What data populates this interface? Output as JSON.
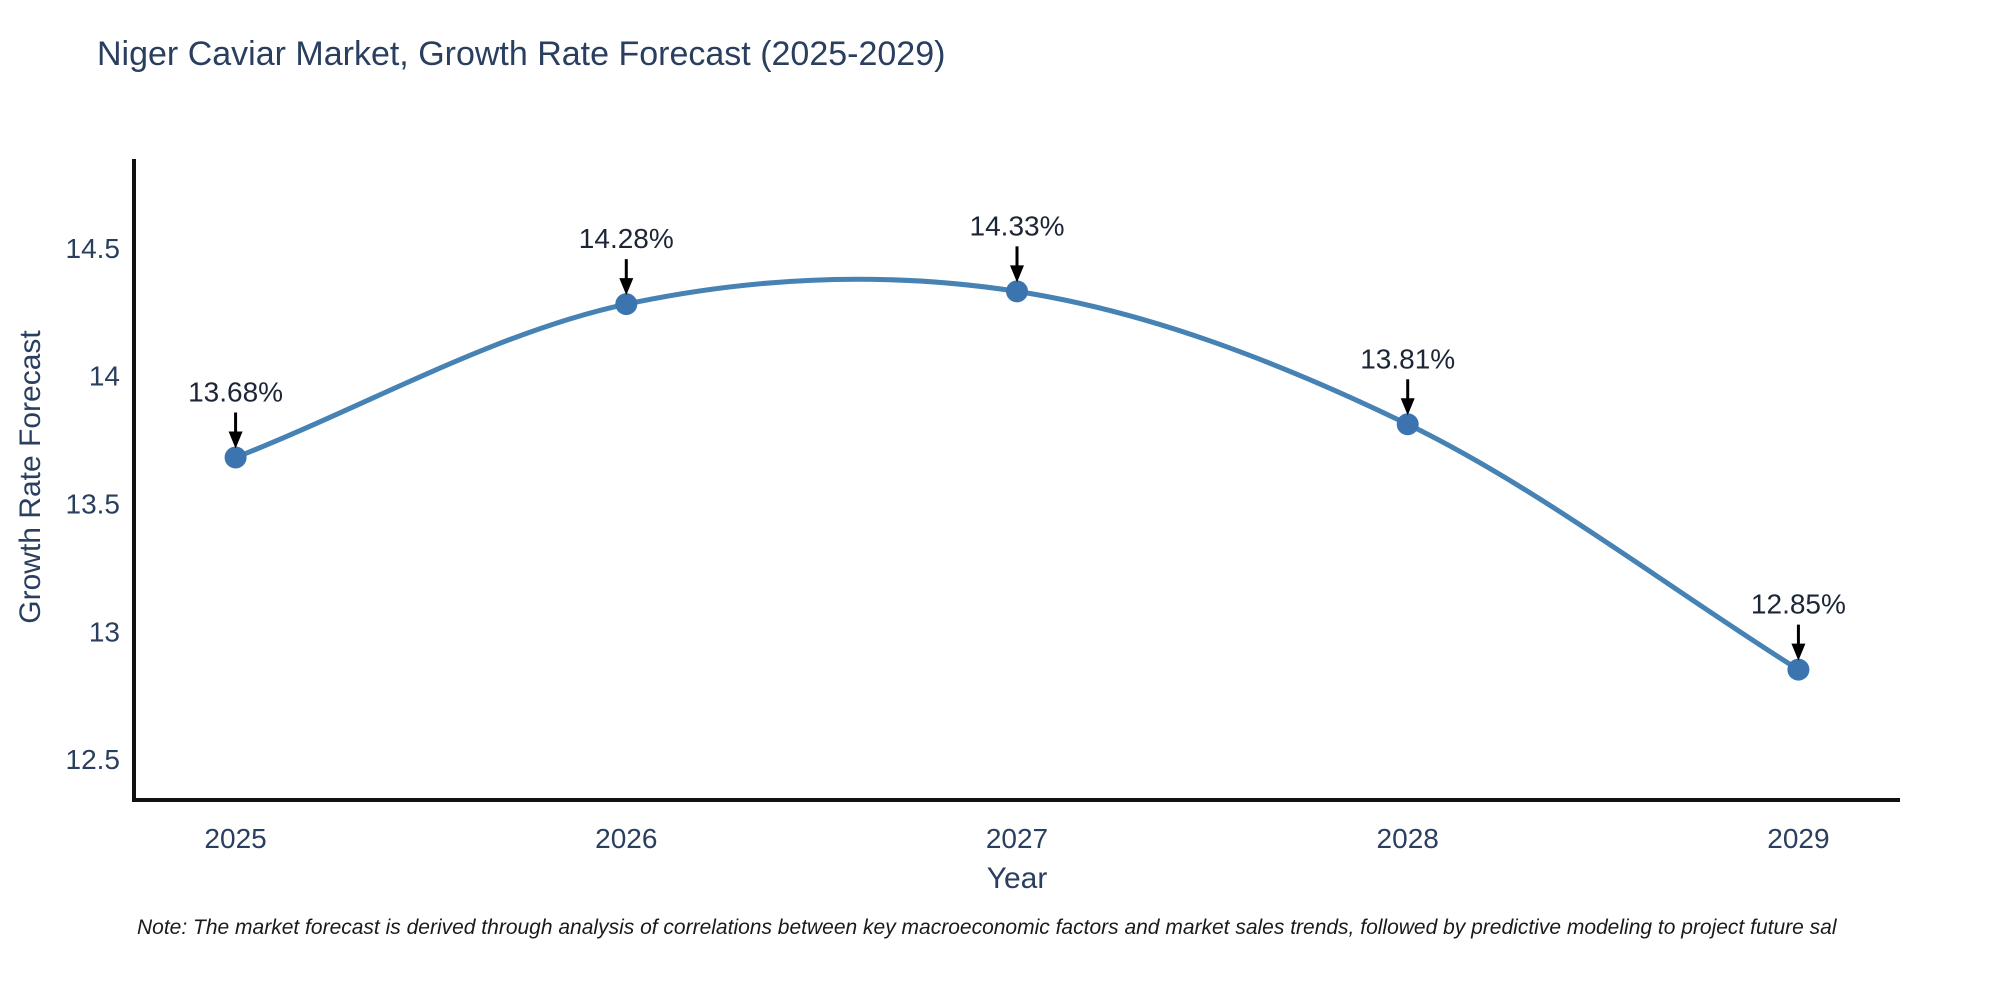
{
  "note": "Note: The market forecast is derived through analysis of correlations between key macroeconomic factors and market sales trends, followed by predictive modeling to project future sal",
  "chart_data": {
    "type": "line",
    "title": "Niger Caviar Market, Growth Rate Forecast (2025-2029)",
    "xlabel": "Year",
    "ylabel": "Growth Rate Forecast",
    "x": [
      2025,
      2026,
      2027,
      2028,
      2029
    ],
    "values": [
      13.68,
      14.28,
      14.33,
      13.81,
      12.85
    ],
    "point_labels": [
      "13.68%",
      "14.28%",
      "14.33%",
      "13.81%",
      "12.85%"
    ],
    "x_tick_labels": [
      "2025",
      "2026",
      "2027",
      "2028",
      "2029"
    ],
    "y_ticks": [
      12.5,
      13,
      13.5,
      14,
      14.5
    ],
    "y_tick_labels": [
      "12.5",
      "13",
      "13.5",
      "14",
      "14.5"
    ],
    "xlim": [
      2024.74,
      2029.26
    ],
    "ylim": [
      12.34,
      14.84
    ],
    "line_shape": "spline",
    "grid": false,
    "legend_position": "none",
    "colors": {
      "line": "#4682b4",
      "marker": "#3c74b0",
      "axis": "#111111",
      "text": "#2a3f5f",
      "annotation": "#1c2636",
      "arrow": "#000000",
      "background": "#ffffff"
    }
  }
}
